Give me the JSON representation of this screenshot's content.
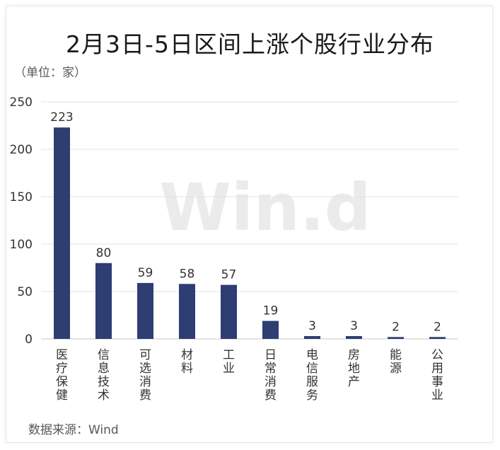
{
  "header": {
    "title": "2月3日-5日区间上涨个股行业分布",
    "unit_note": "（单位：家）"
  },
  "footer": {
    "source": "数据来源：Wind"
  },
  "watermark": "Win.d",
  "colors": {
    "bar": "#2e3d72",
    "grid": "#e3e3e3",
    "axis": "#c8c8c8",
    "text": "#333333"
  },
  "chart_data": {
    "type": "bar",
    "title": "2月3日-5日区间上涨个股行业分布",
    "xlabel": "",
    "ylabel": "",
    "categories": [
      "医疗保健",
      "信息技术",
      "可选消费",
      "材料",
      "工业",
      "日常消费",
      "电信服务",
      "房地产",
      "能源",
      "公用事业"
    ],
    "values": [
      223,
      80,
      59,
      58,
      57,
      19,
      3,
      3,
      2,
      2
    ],
    "ylim": [
      0,
      250
    ],
    "yticks": [
      0,
      50,
      100,
      150,
      200,
      250
    ],
    "grid": true,
    "data_labels": true
  }
}
